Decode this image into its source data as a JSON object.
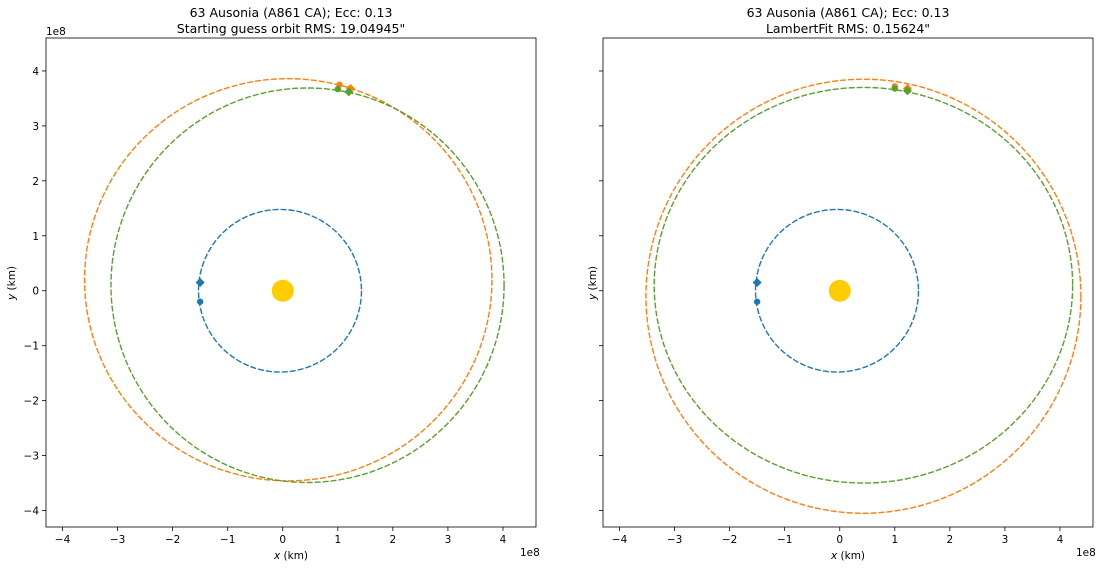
{
  "chart_data": [
    {
      "type": "scatter",
      "title_line1": "63 Ausonia (A861 CA); Ecc: 0.13",
      "title_line2": "Starting guess orbit RMS: 19.04945\"",
      "xlabel_var": "x",
      "xlabel_unit": " (km)",
      "ylabel_var": "y",
      "ylabel_unit": " (km)",
      "x_exponent": "1e8",
      "y_exponent": "1e8",
      "xlim": [
        -4.3,
        4.6
      ],
      "ylim": [
        -4.3,
        4.6
      ],
      "xticks": [
        -4,
        -3,
        -2,
        -1,
        0,
        1,
        2,
        3,
        4
      ],
      "yticks": [
        -4,
        -3,
        -2,
        -1,
        0,
        1,
        2,
        3,
        4
      ],
      "show_y_ticklabels": true,
      "sun": {
        "x": 0,
        "y": 0,
        "color": "#ffcc00"
      },
      "orbits": [
        {
          "color": "#1f77b4",
          "cx": -0.05,
          "cy": 0.0,
          "rx": 1.48,
          "ry": 1.48
        },
        {
          "color": "#ff7f0e",
          "cx": 0.1,
          "cy": 0.2,
          "rx": 3.7,
          "ry": 3.66
        },
        {
          "color": "#5aa02c",
          "cx": 0.45,
          "cy": 0.1,
          "rx": 3.57,
          "ry": 3.59
        }
      ],
      "markers": [
        {
          "color": "#1f77b4",
          "shape": "diamond",
          "x": -1.5,
          "y": 0.15
        },
        {
          "color": "#1f77b4",
          "shape": "dot",
          "x": -1.5,
          "y": -0.2
        },
        {
          "color": "#ff7f0e",
          "shape": "dot",
          "x": 1.03,
          "y": 3.75
        },
        {
          "color": "#ff7f0e",
          "shape": "diamond",
          "x": 1.23,
          "y": 3.68
        },
        {
          "color": "#5aa02c",
          "shape": "dot",
          "x": 1.0,
          "y": 3.67
        },
        {
          "color": "#5aa02c",
          "shape": "diamond",
          "x": 1.2,
          "y": 3.62
        }
      ]
    },
    {
      "type": "scatter",
      "title_line1": "63 Ausonia (A861 CA); Ecc: 0.13",
      "title_line2": "LambertFit RMS: 0.15624\"",
      "xlabel_var": "x",
      "xlabel_unit": " (km)",
      "ylabel_var": "y",
      "ylabel_unit": " (km)",
      "x_exponent": "1e8",
      "y_exponent": "",
      "xlim": [
        -4.3,
        4.6
      ],
      "ylim": [
        -4.3,
        4.6
      ],
      "xticks": [
        -4,
        -3,
        -2,
        -1,
        0,
        1,
        2,
        3,
        4
      ],
      "yticks": [
        -4,
        -3,
        -2,
        -1,
        0,
        1,
        2,
        3,
        4
      ],
      "show_y_ticklabels": false,
      "sun": {
        "x": 0,
        "y": 0,
        "color": "#ffcc00"
      },
      "orbits": [
        {
          "color": "#1f77b4",
          "cx": -0.05,
          "cy": 0.0,
          "rx": 1.48,
          "ry": 1.48
        },
        {
          "color": "#ff7f0e",
          "cx": 0.43,
          "cy": -0.1,
          "rx": 3.95,
          "ry": 3.95
        },
        {
          "color": "#5aa02c",
          "cx": 0.43,
          "cy": 0.1,
          "rx": 3.8,
          "ry": 3.6
        }
      ],
      "markers": [
        {
          "color": "#1f77b4",
          "shape": "diamond",
          "x": -1.5,
          "y": 0.15
        },
        {
          "color": "#1f77b4",
          "shape": "dot",
          "x": -1.5,
          "y": -0.2
        },
        {
          "color": "#ff7f0e",
          "shape": "dot",
          "x": 1.0,
          "y": 3.72
        },
        {
          "color": "#ff7f0e",
          "shape": "diamond",
          "x": 1.23,
          "y": 3.68
        },
        {
          "color": "#5aa02c",
          "shape": "dot",
          "x": 1.0,
          "y": 3.68
        },
        {
          "color": "#5aa02c",
          "shape": "diamond",
          "x": 1.23,
          "y": 3.64
        }
      ]
    }
  ]
}
